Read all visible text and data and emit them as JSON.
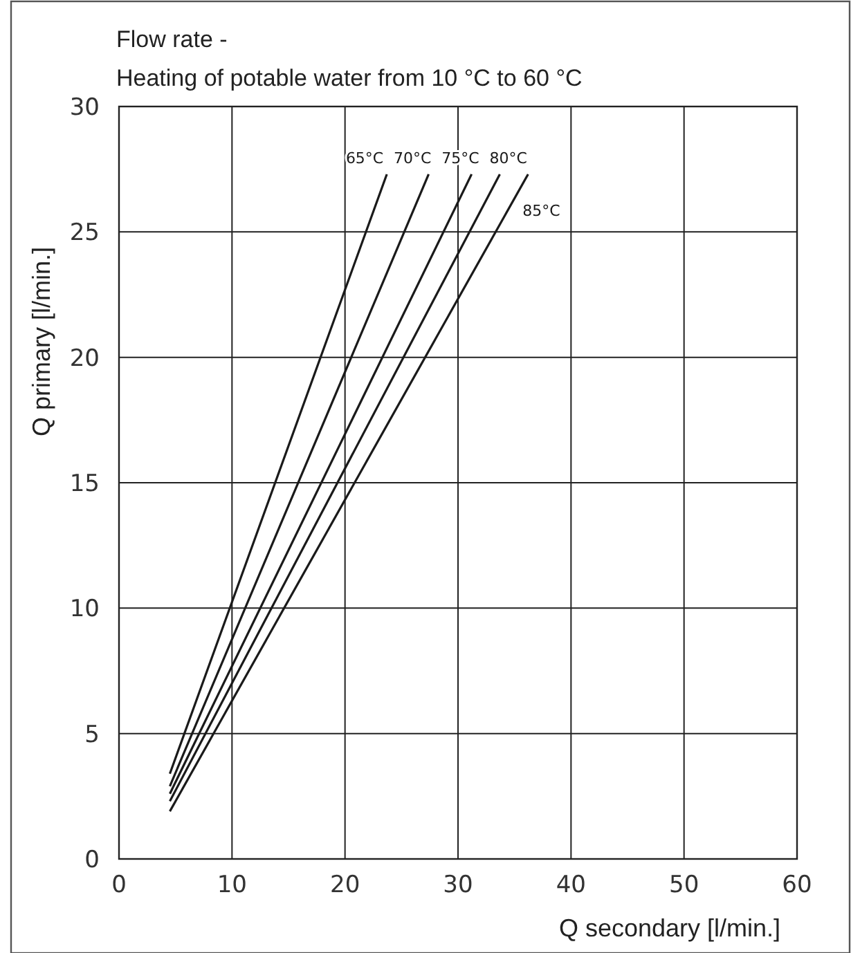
{
  "chart_data": {
    "type": "line",
    "title": "Flow rate -",
    "subtitle": "Heating of potable water from 10 °C to 60 °C",
    "xlabel": "Q secondary [l/min.]",
    "ylabel": "Q primary [l/min.]",
    "xlim": [
      0,
      60
    ],
    "xticks": [
      0,
      10,
      20,
      30,
      40,
      50,
      60
    ],
    "ylim": [
      0,
      30
    ],
    "yticks": [
      0,
      5,
      10,
      15,
      20,
      25,
      30
    ],
    "grid": true,
    "marker": "none",
    "line_style": "solid",
    "series": [
      {
        "name": "65°C",
        "color": "#1a1a1a",
        "x": [
          4.5,
          23.7
        ],
        "values": [
          3.4,
          27.3
        ]
      },
      {
        "name": "70°C",
        "color": "#1a1a1a",
        "x": [
          4.5,
          27.4
        ],
        "values": [
          2.9,
          27.3
        ]
      },
      {
        "name": "75°C",
        "color": "#1a1a1a",
        "x": [
          4.5,
          31.2
        ],
        "values": [
          2.6,
          27.3
        ]
      },
      {
        "name": "80°C",
        "color": "#1a1a1a",
        "x": [
          4.5,
          33.7
        ],
        "values": [
          2.3,
          27.3
        ]
      },
      {
        "name": "85°C",
        "color": "#1a1a1a",
        "x": [
          4.5,
          36.2
        ],
        "values": [
          1.9,
          27.3
        ]
      }
    ]
  }
}
